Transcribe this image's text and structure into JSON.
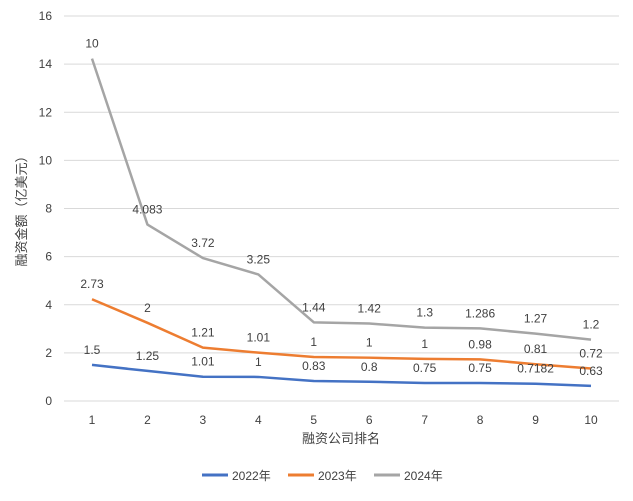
{
  "chart_data": {
    "type": "line",
    "stacked": true,
    "title": "",
    "xlabel": "融资公司排名",
    "ylabel": "融资金额（亿美元）",
    "ylim": [
      0,
      16
    ],
    "yticks": [
      0,
      2,
      4,
      6,
      8,
      10,
      12,
      14,
      16
    ],
    "grid": true,
    "legend_position": "bottom",
    "categories": [
      "1",
      "2",
      "3",
      "4",
      "5",
      "6",
      "7",
      "8",
      "9",
      "10"
    ],
    "series": [
      {
        "name": "2022年",
        "color": "#4472C4",
        "values": [
          1.5,
          1.25,
          1.01,
          1,
          0.83,
          0.8,
          0.75,
          0.75,
          0.7182,
          0.63
        ]
      },
      {
        "name": "2023年",
        "color": "#ED7D31",
        "values": [
          2.73,
          2,
          1.21,
          1.01,
          1,
          1,
          1,
          0.98,
          0.81,
          0.72
        ]
      },
      {
        "name": "2024年",
        "color": "#A5A5A5",
        "values": [
          10,
          4.083,
          3.72,
          3.25,
          1.44,
          1.42,
          1.3,
          1.286,
          1.27,
          1.2
        ]
      }
    ]
  }
}
